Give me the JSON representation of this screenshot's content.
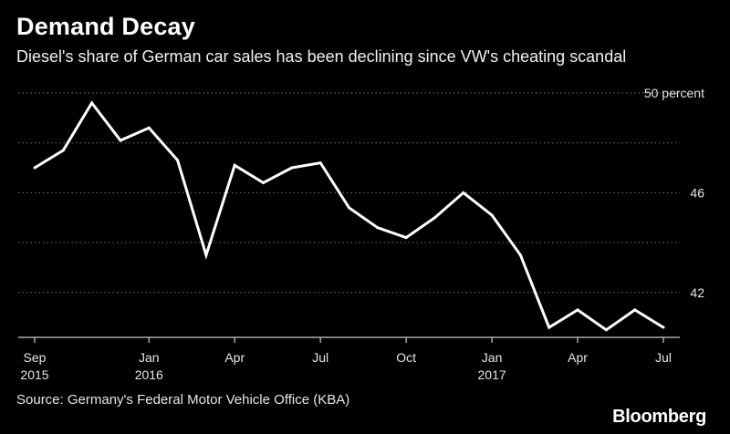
{
  "header": {
    "title": "Demand Decay",
    "subtitle": "Diesel's share of German car sales has been declining since VW's cheating scandal"
  },
  "footer": {
    "source": "Source: Germany's Federal Motor Vehicle Office (KBA)",
    "brand": "Bloomberg"
  },
  "colors": {
    "background": "#000000",
    "line": "#ffffff",
    "grid": "#777777",
    "text": "#e6e6e6"
  },
  "chart_data": {
    "type": "line",
    "title": "Demand Decay",
    "subtitle": "Diesel's share of German car sales has been declining since VW's cheating scandal",
    "xlabel": "",
    "ylabel": "",
    "y_unit": "percent",
    "ylim": [
      40.2,
      50
    ],
    "grid": true,
    "y_axis_position": "right",
    "y_ticks": [
      {
        "value": 50,
        "label": "50 percent"
      },
      {
        "value": 48,
        "label": ""
      },
      {
        "value": 46,
        "label": "46"
      },
      {
        "value": 44,
        "label": ""
      },
      {
        "value": 42,
        "label": "42"
      }
    ],
    "x": [
      "2015-09",
      "2015-10",
      "2015-11",
      "2015-12",
      "2016-01",
      "2016-02",
      "2016-03",
      "2016-04",
      "2016-05",
      "2016-06",
      "2016-07",
      "2016-08",
      "2016-09",
      "2016-10",
      "2016-11",
      "2016-12",
      "2017-01",
      "2017-02",
      "2017-03",
      "2017-04",
      "2017-05",
      "2017-06",
      "2017-07"
    ],
    "x_ticks": [
      {
        "index": 0,
        "label": "Sep",
        "year": "2015"
      },
      {
        "index": 4,
        "label": "Jan",
        "year": "2016"
      },
      {
        "index": 7,
        "label": "Apr",
        "year": ""
      },
      {
        "index": 10,
        "label": "Jul",
        "year": ""
      },
      {
        "index": 13,
        "label": "Oct",
        "year": ""
      },
      {
        "index": 16,
        "label": "Jan",
        "year": "2017"
      },
      {
        "index": 19,
        "label": "Apr",
        "year": ""
      },
      {
        "index": 22,
        "label": "Jul",
        "year": ""
      }
    ],
    "series": [
      {
        "values": [
          47.0,
          47.7,
          49.6,
          48.1,
          48.6,
          47.3,
          43.5,
          47.1,
          46.4,
          47.0,
          47.2,
          45.4,
          44.6,
          44.2,
          45.0,
          46.0,
          45.1,
          43.5,
          40.6,
          41.3,
          40.5,
          41.3,
          40.6
        ]
      }
    ]
  }
}
